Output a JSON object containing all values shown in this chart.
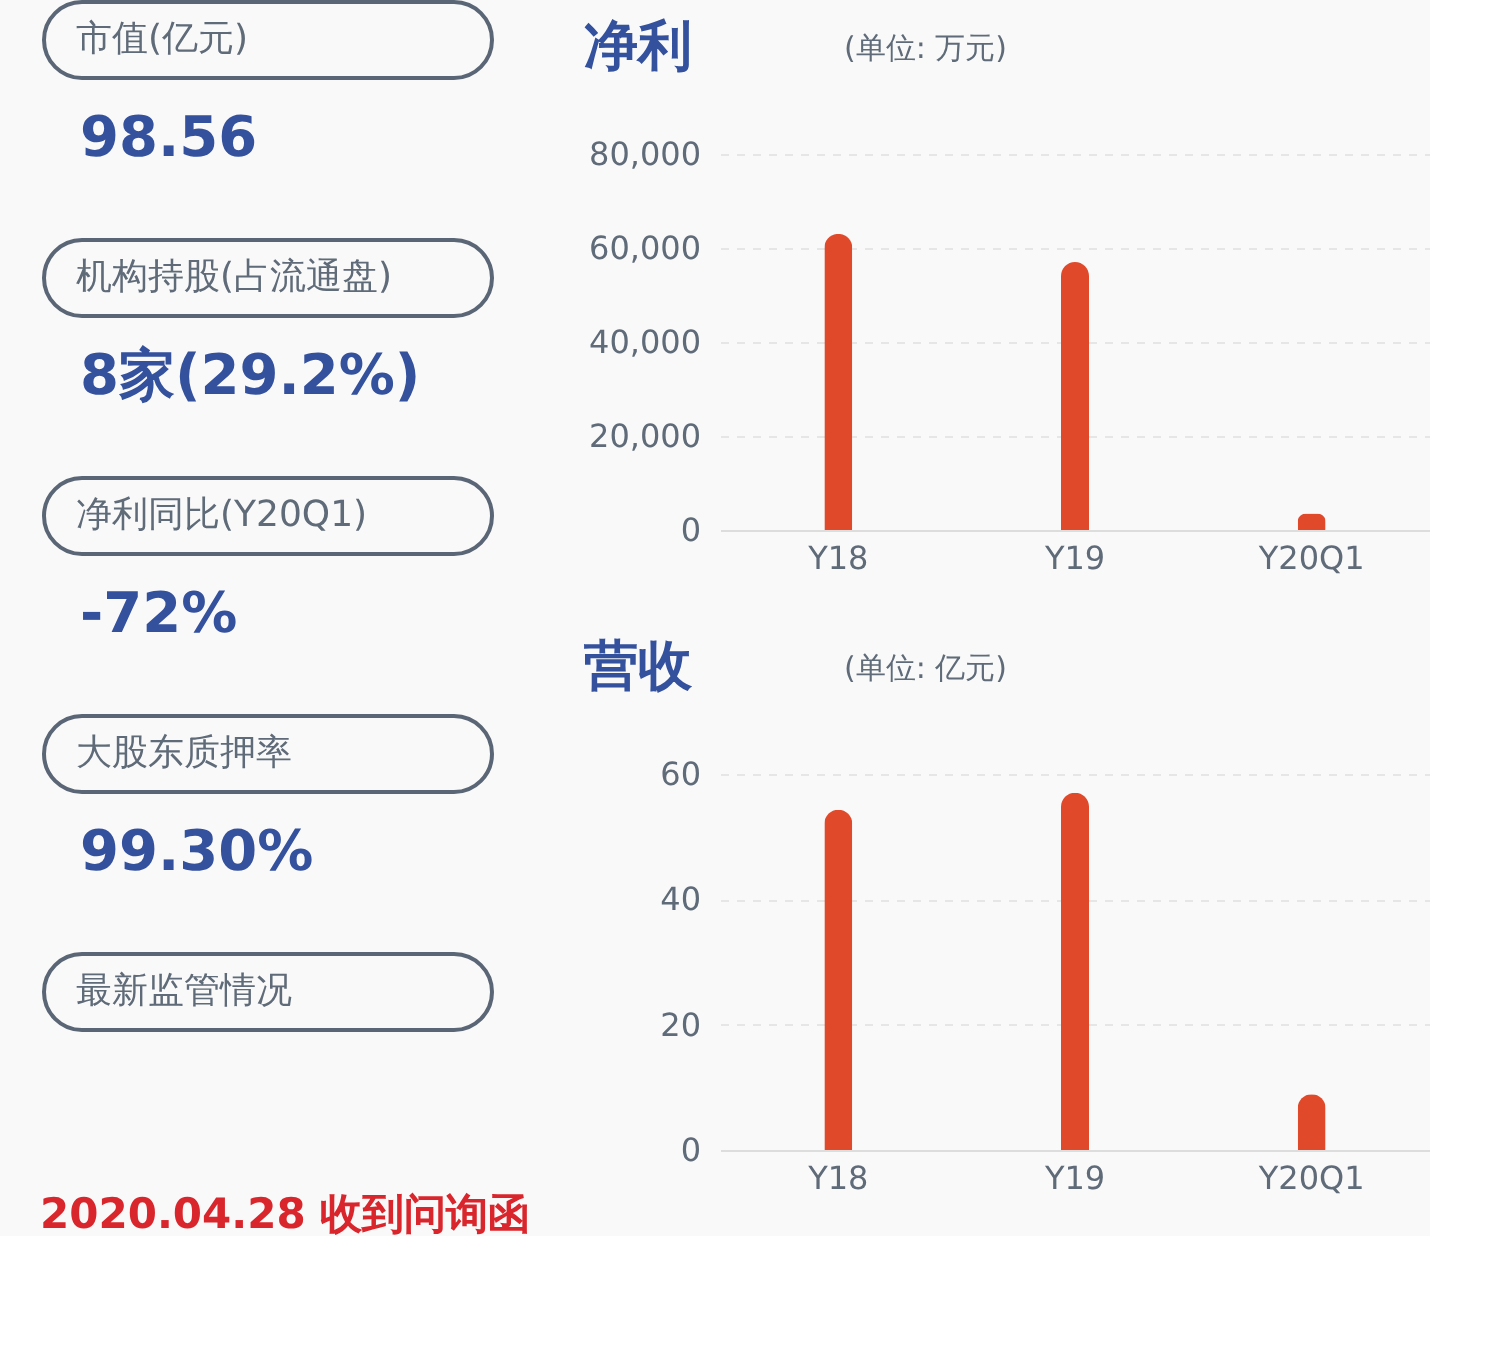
{
  "chart_data": [
    {
      "type": "other",
      "annotations": [
        "市值(亿元)",
        "98.56",
        "机构持股(占流通盘)",
        "8家(29.2%)",
        "净利同比(Y20Q1)",
        "-72%",
        "大股东质押率",
        "99.30%",
        "最新监管情况",
        "2020.04.28 收到问询函"
      ]
    },
    {
      "type": "bar",
      "title": "净利",
      "subtitle": "(单位: 万元)",
      "categories": [
        "Y18",
        "Y19",
        "Y20Q1"
      ],
      "series": [
        {
          "color": "#e04a2a",
          "values": [
            63000,
            57000,
            3500
          ]
        }
      ],
      "ylim": [
        0,
        80000
      ],
      "yticks": [
        {
          "value": 0,
          "label": "0"
        },
        {
          "value": 20000,
          "label": "20,000"
        },
        {
          "value": 40000,
          "label": "40,000"
        },
        {
          "value": 60000,
          "label": "60,000"
        },
        {
          "value": 80000,
          "label": "80,000"
        }
      ],
      "grid": "y"
    },
    {
      "type": "bar",
      "title": "营收",
      "subtitle": "(单位: 亿元)",
      "categories": [
        "Y18",
        "Y19",
        "Y20Q1"
      ],
      "series": [
        {
          "color": "#e04a2a",
          "values": [
            54.3,
            57,
            8.9
          ]
        }
      ],
      "ylim": [
        0,
        60
      ],
      "yticks": [
        0,
        20,
        40,
        60
      ],
      "grid": "y"
    }
  ]
}
